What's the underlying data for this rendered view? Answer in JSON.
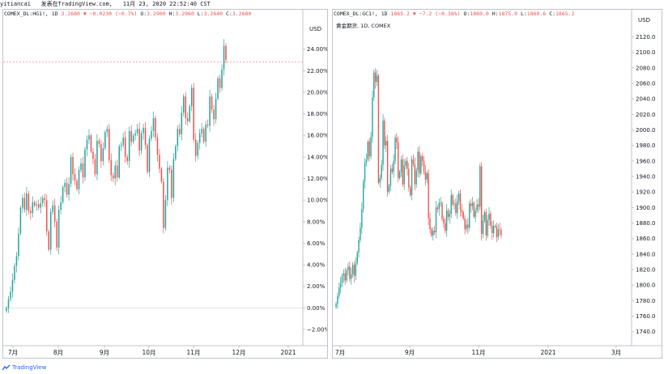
{
  "header": {
    "user": "yitiancai",
    "published": "发表在TradingView.com,",
    "datetime": "11月 23, 2020 22:52:40 CST"
  },
  "left_chart": {
    "symbol": "COMEX_DL:HG1!, 1D",
    "last": "3.2680",
    "change": "▼ −0.0230 (−0.7%)",
    "o_label": "O:",
    "o": "3.2900",
    "h_label": "H:",
    "h": "3.2960",
    "l_label": "L:",
    "l": "3.2640",
    "c_label": "C:",
    "c": "3.2680"
  },
  "right_chart": {
    "symbol": "COMEX_DL:GC1!, 1D",
    "last": "1865.2",
    "change": "▼ −7.2 (−0.38%)",
    "o_label": "O:",
    "o": "1869.0",
    "h_label": "H:",
    "h": "1875.0",
    "l_label": "L:",
    "l": "1860.6",
    "c_label": "C:",
    "c": "1865.2",
    "subtitle": "黄金期货, 1D, COMEX"
  },
  "footer": {
    "brand": "TradingView"
  },
  "colors": {
    "up": "#26a69a",
    "down": "#ef5350",
    "grid": "#e0e3eb",
    "axis_text": "#131722"
  },
  "chart_data": [
    {
      "type": "candlestick",
      "title": "COMEX_DL:HG1!, 1D",
      "ylabel": "USD",
      "y_unit": "%",
      "y_ticks": [
        24,
        22,
        20,
        18,
        16,
        14,
        12,
        10,
        8,
        6,
        4,
        2,
        0,
        -2
      ],
      "y_tick_labels": [
        "24.00%",
        "22.00%",
        "20.00%",
        "18.00%",
        "16.00%",
        "14.00%",
        "12.00%",
        "10.00%",
        "8.00%",
        "6.00%",
        "4.00%",
        "2.00%",
        "0.00%",
        "−2.00%"
      ],
      "ylim": [
        -3.5,
        26
      ],
      "x_tick_labels": [
        "7月",
        "8月",
        "9月",
        "10月",
        "11月",
        "12月",
        "2021"
      ],
      "closes": [
        0.0,
        0.8,
        1.5,
        2.6,
        3.9,
        4.8,
        6.9,
        9.3,
        10.2,
        9.1,
        10.6,
        9.0,
        8.8,
        9.8,
        9.5,
        9.6,
        9.3,
        9.7,
        10.2,
        10.0,
        7.1,
        5.4,
        8.9,
        9.5,
        8.0,
        5.6,
        9.1,
        9.8,
        11.2,
        11.6,
        10.5,
        11.5,
        14.0,
        12.4,
        11.8,
        11.0,
        12.8,
        13.4,
        12.1,
        14.7,
        15.6,
        16.0,
        14.5,
        13.8,
        12.4,
        15.5,
        15.2,
        13.6,
        14.8,
        16.3,
        16.6,
        13.7,
        12.3,
        12.0,
        13.2,
        12.1,
        15.0,
        15.1,
        15.8,
        14.0,
        13.6,
        16.4,
        15.4,
        16.0,
        16.2,
        16.6,
        14.6,
        16.2,
        16.7,
        15.1,
        12.6,
        15.7,
        16.4,
        17.6,
        15.8,
        14.2,
        12.9,
        11.7,
        7.4,
        10.0,
        13.0,
        12.8,
        10.2,
        13.8,
        15.0,
        16.6,
        16.1,
        18.1,
        19.6,
        17.6,
        17.3,
        18.7,
        20.4,
        15.6,
        14.1,
        15.3,
        16.2,
        16.6,
        15.4,
        17.0,
        16.9,
        19.6,
        18.4,
        17.5,
        19.4,
        21.3,
        20.4,
        22.1,
        24.3,
        23.0
      ]
    },
    {
      "type": "candlestick",
      "title": "COMEX_DL:GC1!, 1D",
      "ylabel": "USD",
      "y_ticks": [
        2120,
        2100,
        2080,
        2060,
        2040,
        2020,
        2000,
        1980,
        1960,
        1940,
        1920,
        1900,
        1880,
        1860,
        1840,
        1820,
        1800,
        1780,
        1760,
        1740
      ],
      "ylim": [
        1722,
        2132
      ],
      "x_tick_labels": [
        "7月",
        "9月",
        "11月",
        "2021",
        "3月"
      ],
      "closes": [
        1776,
        1786,
        1797,
        1802,
        1812,
        1815,
        1806,
        1819,
        1824,
        1808,
        1814,
        1826,
        1812,
        1828,
        1842,
        1858,
        1874,
        1898,
        1933,
        1958,
        1962,
        1985,
        1966,
        1991,
        2042,
        2074,
        2062,
        2070,
        1932,
        1938,
        1955,
        2012,
        1980,
        1986,
        1920,
        1928,
        1950,
        1946,
        1960,
        1990,
        1984,
        1938,
        1946,
        1962,
        1930,
        1954,
        1960,
        1950,
        1926,
        1916,
        1962,
        1956,
        1930,
        1948,
        1972,
        1944,
        1966,
        1960,
        1946,
        1936,
        1944,
        1886,
        1872,
        1864,
        1870,
        1868,
        1900,
        1898,
        1906,
        1906,
        1885,
        1880,
        1870,
        1896,
        1888,
        1892,
        1916,
        1904,
        1905,
        1893,
        1908,
        1918,
        1897,
        1894,
        1886,
        1872,
        1878,
        1874,
        1905,
        1902,
        1906,
        1888,
        1896,
        1904,
        1901,
        1953,
        1866,
        1883,
        1894,
        1864,
        1884,
        1892,
        1877,
        1867,
        1876,
        1876,
        1862,
        1872,
        1871,
        1865
      ]
    }
  ]
}
